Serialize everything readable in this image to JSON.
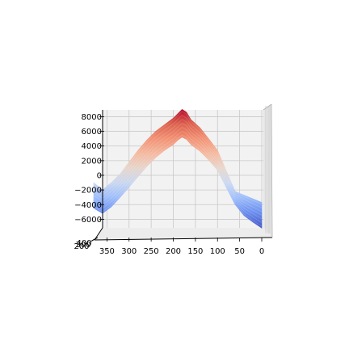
{
  "chart_data": {
    "type": "surface",
    "view": "side elevation (x axis runs right-to-left, z axis vertical)",
    "colormap": "coolwarm",
    "grid": true,
    "x_ticks": [
      "350",
      "300",
      "250",
      "200",
      "150",
      "100",
      "50",
      "0"
    ],
    "x_tick_values": [
      350,
      300,
      250,
      200,
      150,
      100,
      50,
      0
    ],
    "y_ticks": [
      "400",
      "300",
      "200"
    ],
    "z_ticks": [
      "8000",
      "6000",
      "4000",
      "2000",
      "0",
      "−2000",
      "−4000",
      "−6000"
    ],
    "z_tick_values": [
      8000,
      6000,
      4000,
      2000,
      0,
      -2000,
      -4000,
      -6000
    ],
    "xlim": [
      0,
      380
    ],
    "zlim": [
      -7500,
      9000
    ],
    "profile": {
      "x": [
        380,
        360,
        340,
        320,
        300,
        280,
        260,
        240,
        220,
        200,
        190,
        180,
        170,
        160,
        140,
        120,
        100,
        80,
        60,
        40,
        20,
        0
      ],
      "z_top": [
        -1000,
        -2000,
        -1000,
        200,
        1800,
        3400,
        4800,
        6000,
        6900,
        7800,
        8400,
        9000,
        8600,
        7600,
        6500,
        5000,
        3400,
        600,
        -2200,
        -2700,
        -3200,
        -3700
      ],
      "z_bottom": [
        -4500,
        -5200,
        -4300,
        -3000,
        -1600,
        -200,
        1200,
        2400,
        3400,
        4200,
        4800,
        5200,
        4900,
        4200,
        3300,
        2100,
        700,
        -1700,
        -4000,
        -5500,
        -6400,
        -7200
      ]
    }
  }
}
